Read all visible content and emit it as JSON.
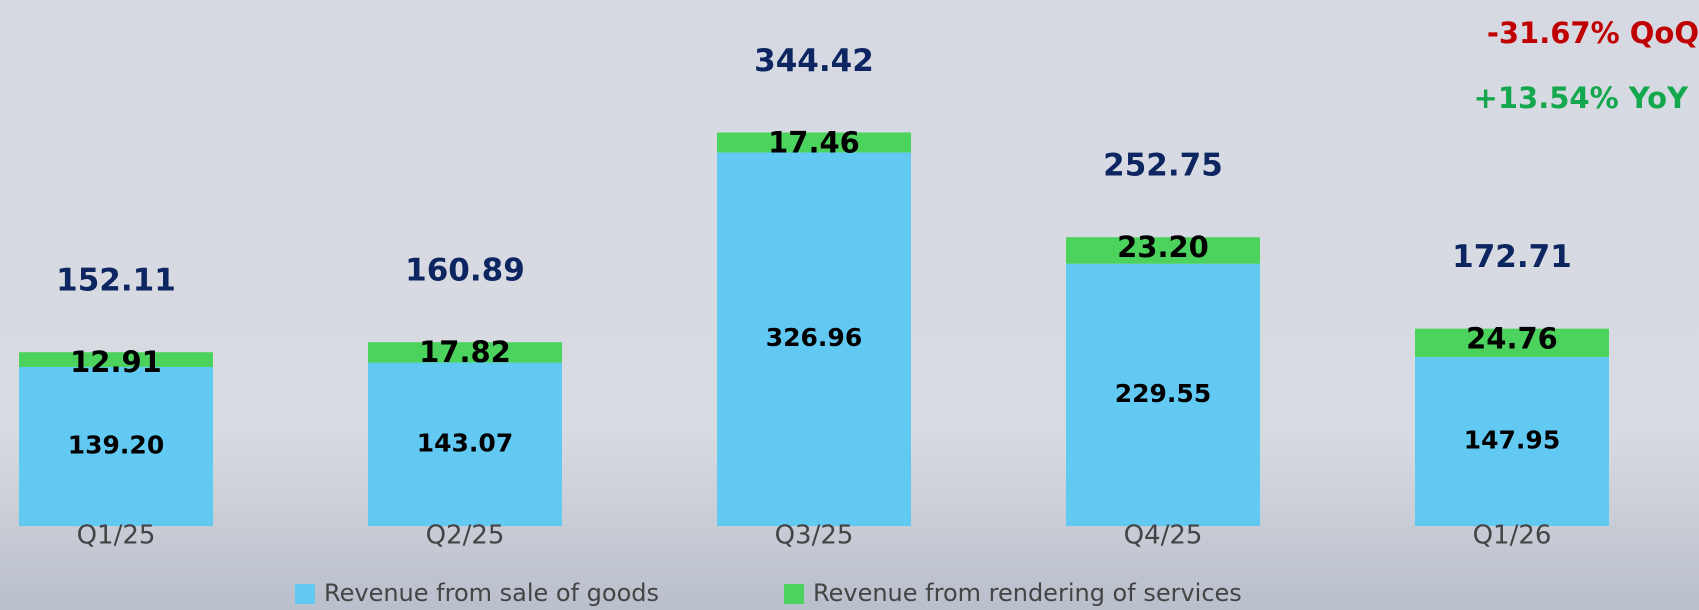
{
  "chart_data": {
    "type": "stacked_bar",
    "categories": [
      "Q1/25",
      "Q2/25",
      "Q3/25",
      "Q4/25",
      "Q1/26"
    ],
    "series": [
      {
        "name": "Revenue from sale of goods",
        "color": "#62c9f3",
        "values": [
          139.2,
          143.07,
          326.96,
          229.55,
          147.95
        ],
        "value_labels": [
          "139.20",
          "143.07",
          "326.96",
          "229.55",
          "147.95"
        ]
      },
      {
        "name": "Revenue from rendering of services",
        "color": "#4cd35e",
        "values": [
          12.91,
          17.82,
          17.46,
          23.2,
          24.76
        ],
        "value_labels": [
          "12.91",
          "17.82",
          "17.46",
          "23.20",
          "24.76"
        ]
      }
    ],
    "totals": [
      152.11,
      160.89,
      344.42,
      252.75,
      172.71
    ],
    "annotations": [
      "-31.67% QoQ",
      "+13.54% YoY"
    ],
    "ylim": [
      0,
      400
    ]
  }
}
